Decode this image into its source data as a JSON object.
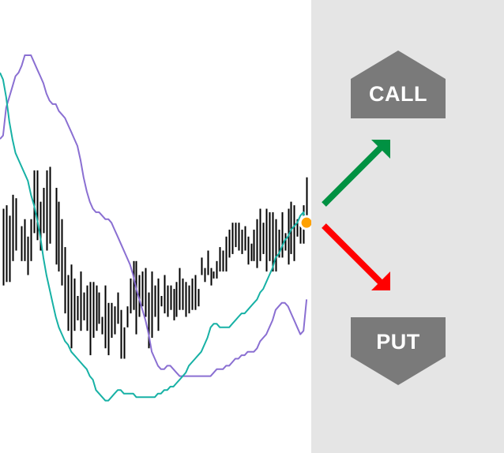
{
  "chart_data": {
    "type": "line",
    "title": "",
    "xlabel": "",
    "ylabel": "",
    "grid": false,
    "ylim": [
      0,
      100
    ],
    "xlim": [
      0,
      100
    ],
    "price_bars": {
      "color": "#000000",
      "x": [
        1,
        2,
        3,
        4,
        5,
        7,
        8,
        9,
        10,
        11,
        12,
        13,
        14,
        15,
        16,
        18,
        19,
        20,
        21,
        22,
        23,
        24,
        25,
        26,
        27,
        28,
        29,
        30,
        31,
        32,
        33,
        34,
        35,
        36,
        37,
        38,
        39,
        40,
        41,
        42,
        43,
        44,
        45,
        46,
        47,
        48,
        49,
        50,
        51,
        52,
        53,
        54,
        55,
        56,
        57,
        58,
        59,
        60,
        61,
        62,
        63,
        64,
        65,
        66,
        67,
        68,
        69,
        70,
        71,
        72,
        73,
        74,
        75,
        76,
        77,
        78,
        79,
        80,
        81,
        82,
        83,
        84,
        85,
        86,
        87,
        88,
        89,
        90,
        91,
        92,
        93,
        94,
        95,
        96,
        97,
        98,
        99
      ],
      "high": [
        56,
        57,
        54,
        60,
        59,
        51,
        53,
        48,
        53,
        67,
        67,
        58,
        62,
        67,
        68,
        62,
        58,
        53,
        45,
        37,
        40,
        36,
        31,
        38,
        32,
        34,
        35,
        35,
        34,
        32,
        25,
        34,
        29,
        29,
        28,
        32,
        27,
        22,
        28,
        36,
        41,
        41,
        37,
        38,
        39,
        32,
        38,
        34,
        36,
        31,
        37,
        34,
        34,
        33,
        35,
        39,
        36,
        35,
        34,
        36,
        37,
        33,
        42,
        39,
        44,
        39,
        38,
        41,
        45,
        44,
        48,
        50,
        52,
        52,
        52,
        50,
        51,
        48,
        46,
        50,
        53,
        56,
        52,
        56,
        55,
        55,
        53,
        50,
        55,
        49,
        56,
        58,
        57,
        53,
        52,
        57,
        65
      ],
      "low": [
        34,
        35,
        35,
        41,
        44,
        41,
        41,
        37,
        41,
        49,
        47,
        44,
        49,
        44,
        46,
        40,
        38,
        34,
        26,
        21,
        16,
        21,
        24,
        21,
        24,
        21,
        14,
        19,
        21,
        23,
        20,
        16,
        14,
        19,
        20,
        23,
        13,
        13,
        22,
        26,
        27,
        20,
        25,
        28,
        25,
        16,
        19,
        25,
        21,
        28,
        26,
        25,
        27,
        24,
        25,
        27,
        27,
        25,
        26,
        27,
        27,
        28,
        37,
        35,
        37,
        34,
        36,
        36,
        38,
        38,
        38,
        42,
        43,
        45,
        44,
        43,
        44,
        40,
        41,
        41,
        39,
        41,
        43,
        38,
        41,
        38,
        38,
        42,
        42,
        44,
        40,
        43,
        41,
        48,
        46,
        46,
        50
      ]
    },
    "upper_band": {
      "color": "#8a6fd2",
      "x": [
        0,
        1,
        2,
        3,
        4,
        5,
        6,
        7,
        8,
        9,
        10,
        11,
        12,
        13,
        14,
        15,
        16,
        17,
        18,
        19,
        20,
        21,
        22,
        23,
        24,
        25,
        26,
        27,
        28,
        29,
        30,
        31,
        32,
        33,
        34,
        35,
        36,
        37,
        38,
        39,
        40,
        41,
        42,
        43,
        44,
        45,
        46,
        47,
        48,
        49,
        50,
        51,
        52,
        53,
        54,
        55,
        56,
        57,
        58,
        59,
        60,
        61,
        62,
        63,
        64,
        65,
        66,
        67,
        68,
        69,
        70,
        71,
        72,
        73,
        74,
        75,
        76,
        77,
        78,
        79,
        80,
        81,
        82,
        83,
        84,
        85,
        86,
        87,
        88,
        89,
        90,
        91,
        92,
        93,
        94,
        95,
        96,
        97,
        98,
        99
      ],
      "y": [
        76,
        77,
        85,
        88,
        91,
        94,
        95,
        97,
        100,
        100,
        100,
        98,
        96,
        94,
        92,
        89,
        87,
        86,
        86,
        84,
        83,
        82,
        80,
        78,
        76,
        74,
        70,
        65,
        61,
        58,
        56,
        55,
        55,
        54,
        53,
        53,
        52,
        50,
        48,
        46,
        44,
        42,
        40,
        37,
        33,
        30,
        27,
        24,
        20,
        15,
        13,
        11,
        10,
        10,
        11,
        11,
        10,
        9,
        8,
        8,
        8,
        8,
        8,
        8,
        8,
        8,
        8,
        8,
        8,
        9,
        10,
        10,
        10,
        11,
        11,
        12,
        13,
        13,
        14,
        14,
        15,
        15,
        15,
        16,
        18,
        19,
        20,
        22,
        24,
        27,
        28,
        29,
        29,
        28,
        26,
        24,
        22,
        20,
        21,
        30
      ]
    },
    "lower_band": {
      "color": "#17b1a5",
      "x": [
        0,
        1,
        2,
        3,
        4,
        5,
        6,
        7,
        8,
        9,
        10,
        11,
        12,
        13,
        14,
        15,
        16,
        17,
        18,
        19,
        20,
        21,
        22,
        23,
        24,
        25,
        26,
        27,
        28,
        29,
        30,
        31,
        32,
        33,
        34,
        35,
        36,
        37,
        38,
        39,
        40,
        41,
        42,
        43,
        44,
        45,
        46,
        47,
        48,
        49,
        50,
        51,
        52,
        53,
        54,
        55,
        56,
        57,
        58,
        59,
        60,
        61,
        62,
        63,
        64,
        65,
        66,
        67,
        68,
        69,
        70,
        71,
        72,
        73,
        74,
        75,
        76,
        77,
        78,
        79,
        80,
        81,
        82,
        83,
        84,
        85,
        86,
        87,
        88,
        89,
        90,
        91,
        92,
        93,
        94,
        95,
        96,
        97,
        98,
        99
      ],
      "y": [
        95,
        93,
        88,
        81,
        76,
        72,
        70,
        68,
        66,
        64,
        60,
        57,
        53,
        48,
        42,
        37,
        33,
        29,
        25,
        22,
        20,
        18,
        17,
        15,
        14,
        13,
        12,
        11,
        10,
        8,
        7,
        4,
        3,
        2,
        1,
        1,
        2,
        3,
        4,
        4,
        3,
        3,
        3,
        3,
        2,
        2,
        2,
        2,
        2,
        2,
        2,
        3,
        3,
        4,
        4,
        5,
        5,
        6,
        7,
        8,
        9,
        11,
        12,
        13,
        14,
        15,
        17,
        19,
        22,
        23,
        23,
        22,
        22,
        22,
        22,
        23,
        24,
        25,
        26,
        26,
        27,
        28,
        29,
        30,
        32,
        33,
        35,
        37,
        39,
        42,
        43,
        45,
        47,
        48,
        50,
        51,
        52,
        54,
        55,
        51
      ]
    },
    "current_point": {
      "x": 99,
      "y": 52,
      "color": "#ffa100"
    }
  },
  "colors": {
    "panel_background": "#e5e5e5",
    "button": "#7a7a7a",
    "call_arrow": "#009142",
    "put_arrow": "#ff0000"
  },
  "call_button": {
    "label": "CALL"
  },
  "put_button": {
    "label": "PUT"
  }
}
